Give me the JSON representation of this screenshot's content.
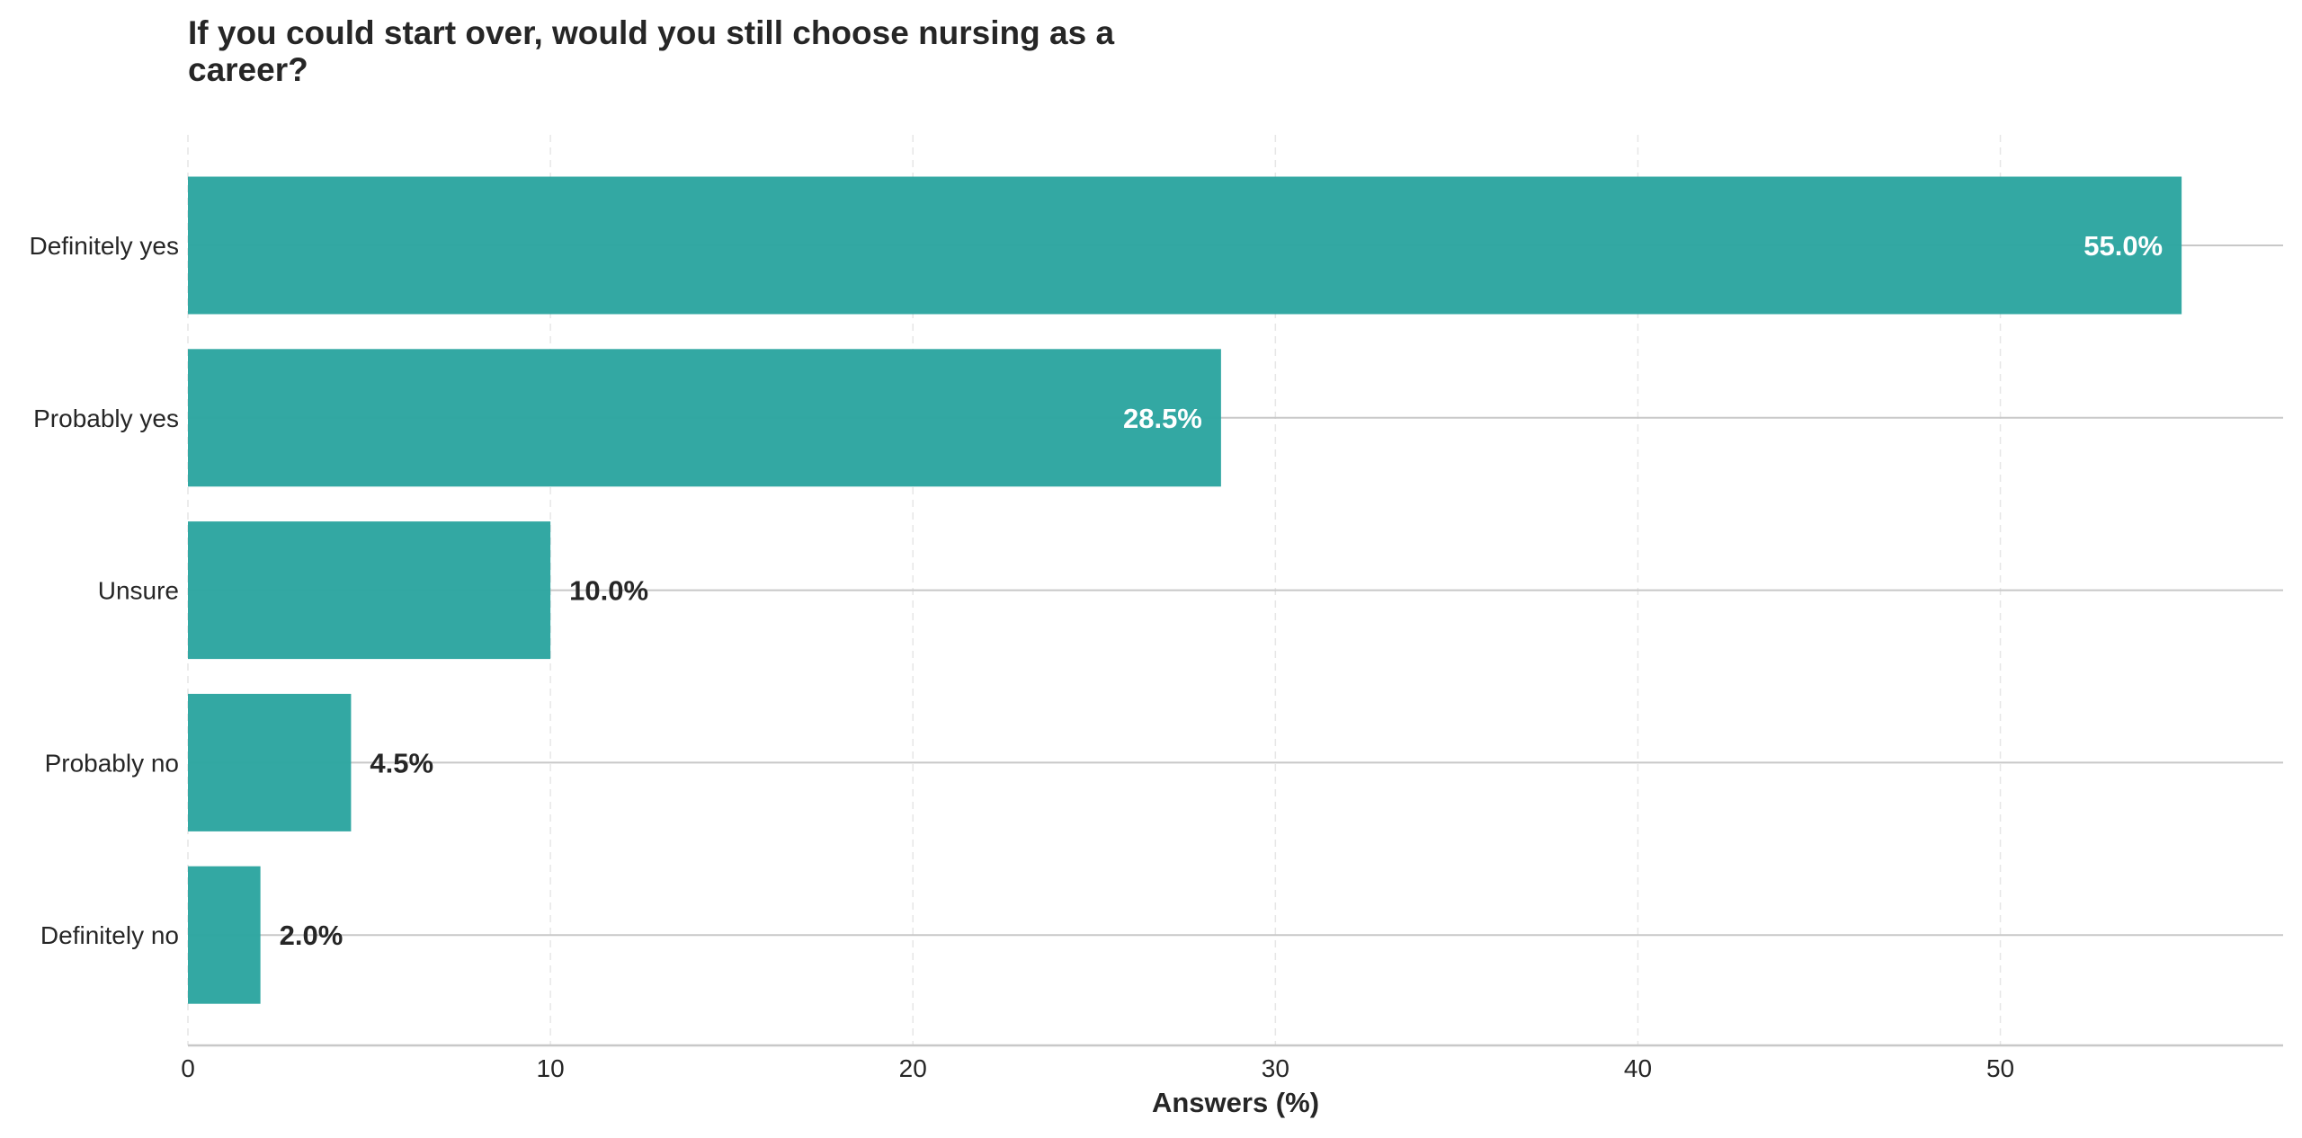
{
  "chart_data": {
    "type": "bar",
    "orientation": "horizontal",
    "title_lines": [
      "If you could start over, would you still choose nursing as a",
      "career?"
    ],
    "categories": [
      "Definitely yes",
      "Probably yes",
      "Unsure",
      "Probably no",
      "Definitely no"
    ],
    "values": [
      55.0,
      28.5,
      10.0,
      4.5,
      2.0
    ],
    "value_labels": [
      "55.0%",
      "28.5%",
      "10.0%",
      "4.5%",
      "2.0%"
    ],
    "xlabel": "Answers (%)",
    "ylabel": "",
    "xlim": [
      0,
      57.8
    ],
    "xticks": [
      0,
      10,
      20,
      30,
      40,
      50
    ],
    "xtick_labels": [
      "0",
      "10",
      "20",
      "30",
      "40",
      "50"
    ],
    "grid": "vertical dashed + horizontal lines at categories",
    "bar_color": "#2ca5a0",
    "inside_label_color": "#ffffff",
    "outside_label_color": "#262626"
  }
}
